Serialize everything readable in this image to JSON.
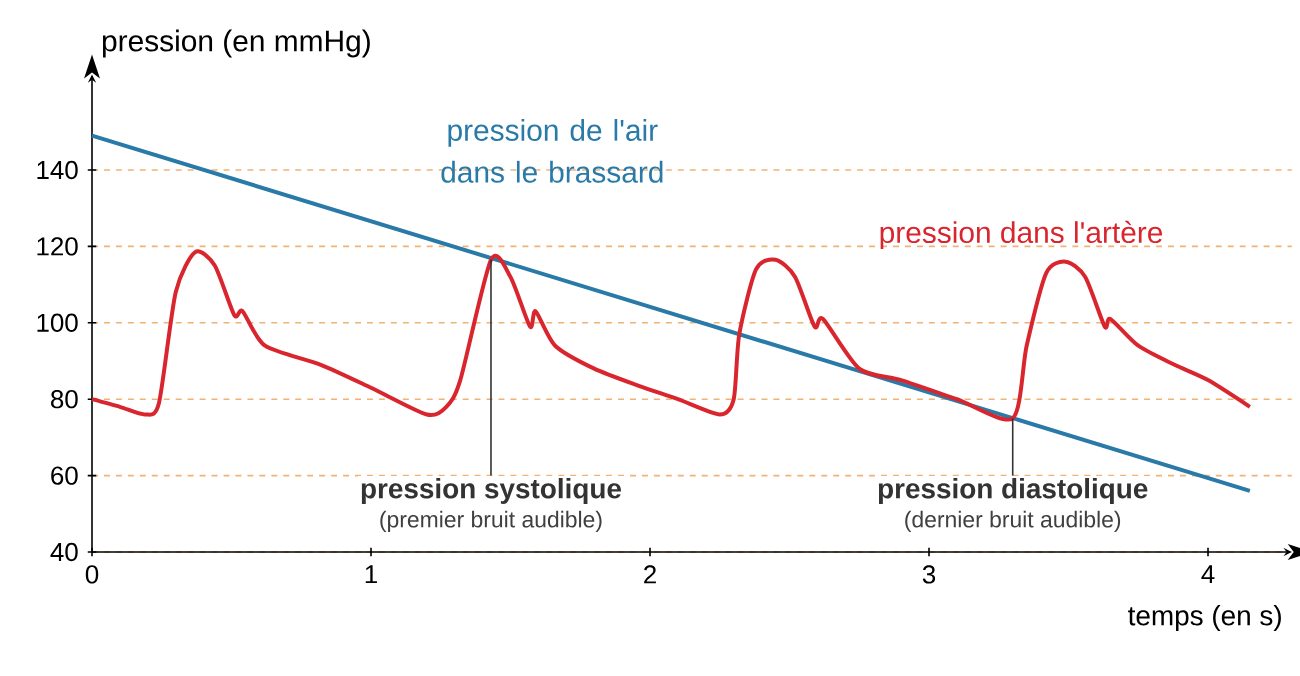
{
  "chart_data": {
    "type": "line",
    "xlabel": "temps (en s)",
    "ylabel": "pression (en mmHg)",
    "xlim": [
      0,
      4.3
    ],
    "ylim": [
      40,
      165
    ],
    "xticks": [
      0,
      1,
      2,
      3,
      4
    ],
    "yticks": [
      40,
      60,
      80,
      100,
      120,
      140
    ],
    "grid": "y",
    "legend": false,
    "marker": "none",
    "series": [
      {
        "name": "pression de l'air dans le brassard",
        "color": "#2a7aa8",
        "x": [
          0,
          4.15
        ],
        "values": [
          149,
          56
        ]
      },
      {
        "name": "pression dans l'artère",
        "color": "#d9262e",
        "x": [
          0,
          0.1,
          0.19,
          0.24,
          0.3,
          0.37,
          0.44,
          0.51,
          0.54,
          0.62,
          0.82,
          1.0,
          1.2,
          1.27,
          1.32,
          1.43,
          1.5,
          1.57,
          1.59,
          1.66,
          1.8,
          1.96,
          2.1,
          2.25,
          2.3,
          2.32,
          2.38,
          2.45,
          2.52,
          2.59,
          2.62,
          2.75,
          2.9,
          3.1,
          3.3,
          3.35,
          3.42,
          3.49,
          3.56,
          3.63,
          3.65,
          3.75,
          3.88,
          4.0,
          4.15
        ],
        "values": [
          80,
          78,
          76,
          79,
          108,
          118.5,
          115,
          102,
          103,
          94,
          89,
          83,
          76,
          78,
          85,
          116.5,
          112,
          99,
          103,
          94,
          88,
          83.5,
          80,
          76,
          80,
          97,
          114,
          116.5,
          112,
          99,
          101,
          88,
          85,
          80,
          75,
          94,
          113,
          116,
          112,
          99,
          101,
          94,
          89,
          85,
          78
        ]
      }
    ],
    "annotations": [
      {
        "text": "pression systolique",
        "x": 1.43,
        "y": 116.5
      },
      "(premier bruit audible)",
      {
        "text": "pression diastolique",
        "x": 3.3,
        "y": 75
      },
      "(dernier bruit audible)"
    ]
  }
}
